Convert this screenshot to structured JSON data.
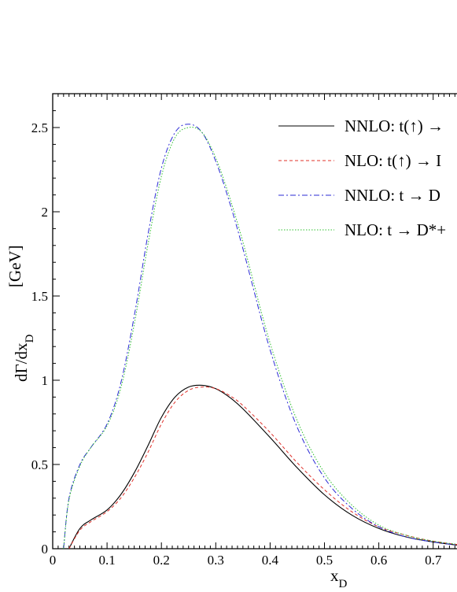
{
  "chart_data": {
    "type": "line",
    "xlabel": "x",
    "xlabel_sub": "D",
    "ylabel": "dΓ/dx",
    "ylabel_sub": "D",
    "ylabel_units": "[GeV]",
    "xlim": [
      0,
      0.76
    ],
    "ylim": [
      0,
      2.7
    ],
    "x_ticks": [
      0,
      0.1,
      0.2,
      0.3,
      0.4,
      0.5,
      0.6,
      0.7
    ],
    "x_tick_labels": [
      "0",
      "0.1",
      "0.2",
      "0.3",
      "0.4",
      "0.5",
      "0.6",
      "0.7"
    ],
    "y_ticks": [
      0,
      0.5,
      1,
      1.5,
      2,
      2.5
    ],
    "y_tick_labels": [
      "0",
      "0.5",
      "1",
      "1.5",
      "2",
      "2.5"
    ],
    "grid": false,
    "legend_position": "top-right",
    "series": [
      {
        "name": "NNLO: t(↑) →",
        "color": "#000000",
        "dash": "none",
        "x": [
          0.03,
          0.05,
          0.07,
          0.1,
          0.125,
          0.15,
          0.175,
          0.2,
          0.225,
          0.25,
          0.275,
          0.3,
          0.325,
          0.35,
          0.4,
          0.45,
          0.5,
          0.55,
          0.6,
          0.65,
          0.7,
          0.76
        ],
        "y": [
          0.0,
          0.12,
          0.17,
          0.23,
          0.32,
          0.45,
          0.61,
          0.78,
          0.9,
          0.96,
          0.97,
          0.95,
          0.9,
          0.83,
          0.66,
          0.48,
          0.32,
          0.2,
          0.12,
          0.07,
          0.04,
          0.015
        ]
      },
      {
        "name": "NLO: t(↑) → I",
        "color": "#e0302a",
        "dash": "4,3",
        "x": [
          0.03,
          0.05,
          0.07,
          0.1,
          0.125,
          0.15,
          0.175,
          0.2,
          0.225,
          0.25,
          0.275,
          0.3,
          0.325,
          0.35,
          0.4,
          0.45,
          0.5,
          0.55,
          0.6,
          0.65,
          0.7,
          0.76
        ],
        "y": [
          0.0,
          0.11,
          0.16,
          0.22,
          0.3,
          0.42,
          0.57,
          0.74,
          0.87,
          0.94,
          0.96,
          0.95,
          0.91,
          0.85,
          0.69,
          0.51,
          0.35,
          0.22,
          0.13,
          0.08,
          0.045,
          0.018
        ]
      },
      {
        "name": "NNLO: t → D",
        "color": "#2b2bd6",
        "dash": "7,3,2,3",
        "x": [
          0.02,
          0.03,
          0.05,
          0.07,
          0.1,
          0.125,
          0.15,
          0.175,
          0.2,
          0.225,
          0.25,
          0.275,
          0.3,
          0.325,
          0.35,
          0.4,
          0.45,
          0.5,
          0.55,
          0.6,
          0.65,
          0.7,
          0.76
        ],
        "y": [
          0.0,
          0.3,
          0.5,
          0.6,
          0.74,
          0.98,
          1.38,
          1.86,
          2.26,
          2.47,
          2.52,
          2.47,
          2.3,
          2.06,
          1.78,
          1.18,
          0.72,
          0.42,
          0.24,
          0.13,
          0.07,
          0.04,
          0.015
        ]
      },
      {
        "name": "NLO: t → D*+",
        "color": "#30c030",
        "dash": "1.5,2",
        "x": [
          0.02,
          0.03,
          0.05,
          0.07,
          0.1,
          0.125,
          0.15,
          0.175,
          0.2,
          0.225,
          0.25,
          0.275,
          0.3,
          0.325,
          0.35,
          0.4,
          0.45,
          0.5,
          0.55,
          0.6,
          0.65,
          0.7,
          0.76
        ],
        "y": [
          0.0,
          0.29,
          0.49,
          0.6,
          0.73,
          0.95,
          1.33,
          1.8,
          2.21,
          2.44,
          2.5,
          2.47,
          2.32,
          2.09,
          1.82,
          1.22,
          0.76,
          0.45,
          0.26,
          0.14,
          0.08,
          0.045,
          0.02
        ]
      }
    ]
  }
}
